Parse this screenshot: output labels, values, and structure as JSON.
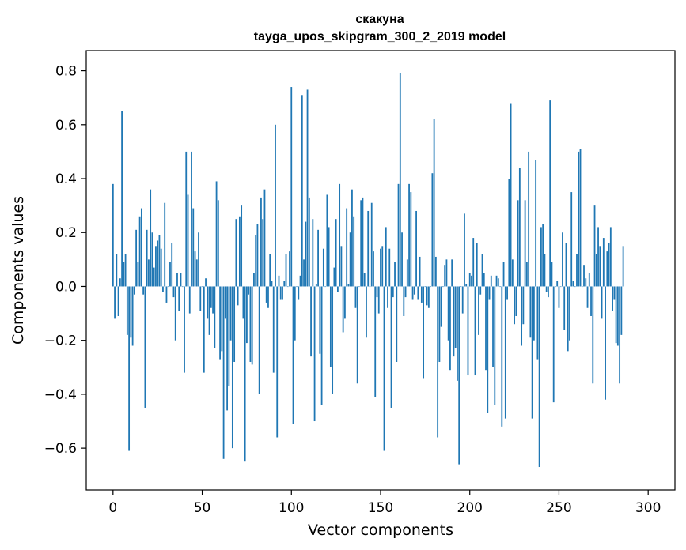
{
  "chart_data": {
    "type": "bar",
    "title": "скакуна",
    "subtitle": "tayga_upos_skipgram_300_2_2019 model",
    "xlabel": "Vector components",
    "ylabel": "Components values",
    "xlim": [
      -15,
      315
    ],
    "ylim": [
      -0.755,
      0.875
    ],
    "x_ticks": [
      0,
      50,
      100,
      150,
      200,
      250,
      300
    ],
    "x_tick_labels": [
      "0",
      "50",
      "100",
      "150",
      "200",
      "250",
      "300"
    ],
    "y_ticks": [
      -0.6,
      -0.4,
      -0.2,
      0.0,
      0.2,
      0.4,
      0.6,
      0.8
    ],
    "y_tick_labels": [
      "−0.6",
      "−0.4",
      "−0.2",
      "0.0",
      "0.2",
      "0.4",
      "0.6",
      "0.8"
    ],
    "grid": false,
    "bar_color": "#1f77b4",
    "values": [
      0.38,
      -0.12,
      0.12,
      -0.11,
      0.03,
      0.65,
      0.09,
      0.12,
      -0.18,
      -0.61,
      -0.19,
      -0.22,
      -0.03,
      0.21,
      0.09,
      0.26,
      0.29,
      -0.03,
      -0.45,
      0.21,
      0.1,
      0.36,
      0.2,
      0.07,
      0.15,
      0.17,
      0.19,
      0.14,
      -0.02,
      0.31,
      -0.06,
      0.0,
      0.09,
      0.16,
      -0.04,
      -0.2,
      0.05,
      -0.09,
      0.05,
      0.0,
      -0.32,
      0.5,
      0.34,
      -0.1,
      0.5,
      0.29,
      0.13,
      0.1,
      0.2,
      -0.09,
      0.0,
      -0.32,
      0.03,
      -0.12,
      -0.18,
      -0.08,
      -0.1,
      -0.23,
      0.39,
      0.32,
      -0.27,
      -0.24,
      -0.64,
      -0.12,
      -0.46,
      -0.37,
      -0.2,
      -0.6,
      -0.28,
      0.25,
      -0.07,
      0.26,
      0.3,
      -0.12,
      -0.65,
      -0.21,
      -0.03,
      -0.28,
      -0.29,
      0.05,
      0.19,
      0.23,
      -0.4,
      0.33,
      0.25,
      0.36,
      -0.06,
      -0.08,
      0.12,
      0.02,
      -0.32,
      0.6,
      -0.56,
      0.04,
      -0.05,
      -0.05,
      0.02,
      0.12,
      0.0,
      0.13,
      0.74,
      -0.51,
      -0.2,
      0.0,
      -0.05,
      0.04,
      0.71,
      0.1,
      0.24,
      0.73,
      0.33,
      -0.26,
      0.25,
      -0.5,
      0.01,
      0.21,
      -0.25,
      -0.44,
      0.14,
      0.0,
      0.34,
      0.22,
      -0.3,
      -0.4,
      0.07,
      0.25,
      -0.02,
      0.38,
      0.15,
      -0.17,
      -0.12,
      0.29,
      0.01,
      0.2,
      0.36,
      0.26,
      -0.08,
      -0.36,
      0.0,
      0.32,
      0.33,
      0.05,
      -0.19,
      0.28,
      0.0,
      0.31,
      0.13,
      -0.41,
      -0.04,
      -0.1,
      0.14,
      0.15,
      -0.61,
      0.22,
      -0.08,
      0.14,
      -0.45,
      -0.04,
      0.09,
      -0.28,
      0.38,
      0.79,
      0.2,
      -0.11,
      -0.04,
      0.1,
      0.38,
      0.35,
      -0.05,
      -0.03,
      0.28,
      -0.05,
      0.11,
      -0.06,
      -0.34,
      0.0,
      -0.07,
      -0.08,
      0.0,
      0.42,
      0.62,
      0.11,
      -0.56,
      -0.28,
      -0.15,
      0.0,
      0.08,
      0.1,
      -0.2,
      -0.31,
      0.1,
      -0.26,
      -0.23,
      -0.35,
      -0.66,
      0.0,
      -0.1,
      0.27,
      0.01,
      -0.33,
      0.05,
      0.04,
      0.18,
      -0.33,
      0.16,
      -0.18,
      -0.03,
      0.12,
      0.05,
      -0.31,
      -0.47,
      -0.05,
      0.04,
      -0.3,
      -0.44,
      0.04,
      0.03,
      0.0,
      -0.52,
      0.09,
      -0.49,
      -0.05,
      0.4,
      0.68,
      0.1,
      -0.14,
      -0.11,
      0.32,
      0.44,
      -0.22,
      -0.14,
      0.32,
      0.09,
      0.5,
      -0.19,
      -0.49,
      -0.2,
      0.47,
      -0.27,
      -0.67,
      0.22,
      0.23,
      0.12,
      -0.02,
      -0.04,
      0.69,
      0.09,
      -0.43,
      0.0,
      0.02,
      -0.08,
      0.0,
      0.2,
      -0.16,
      0.16,
      -0.24,
      -0.2,
      0.35,
      0.02,
      0.0,
      0.12,
      0.5,
      0.51,
      0.0,
      0.08,
      0.03,
      -0.08,
      0.05,
      -0.11,
      -0.36,
      0.3,
      0.12,
      0.22,
      0.15,
      -0.12,
      0.18,
      -0.42,
      0.13,
      0.16,
      0.22,
      -0.09,
      -0.05,
      -0.21,
      -0.22,
      -0.36,
      -0.18,
      0.15
    ]
  }
}
